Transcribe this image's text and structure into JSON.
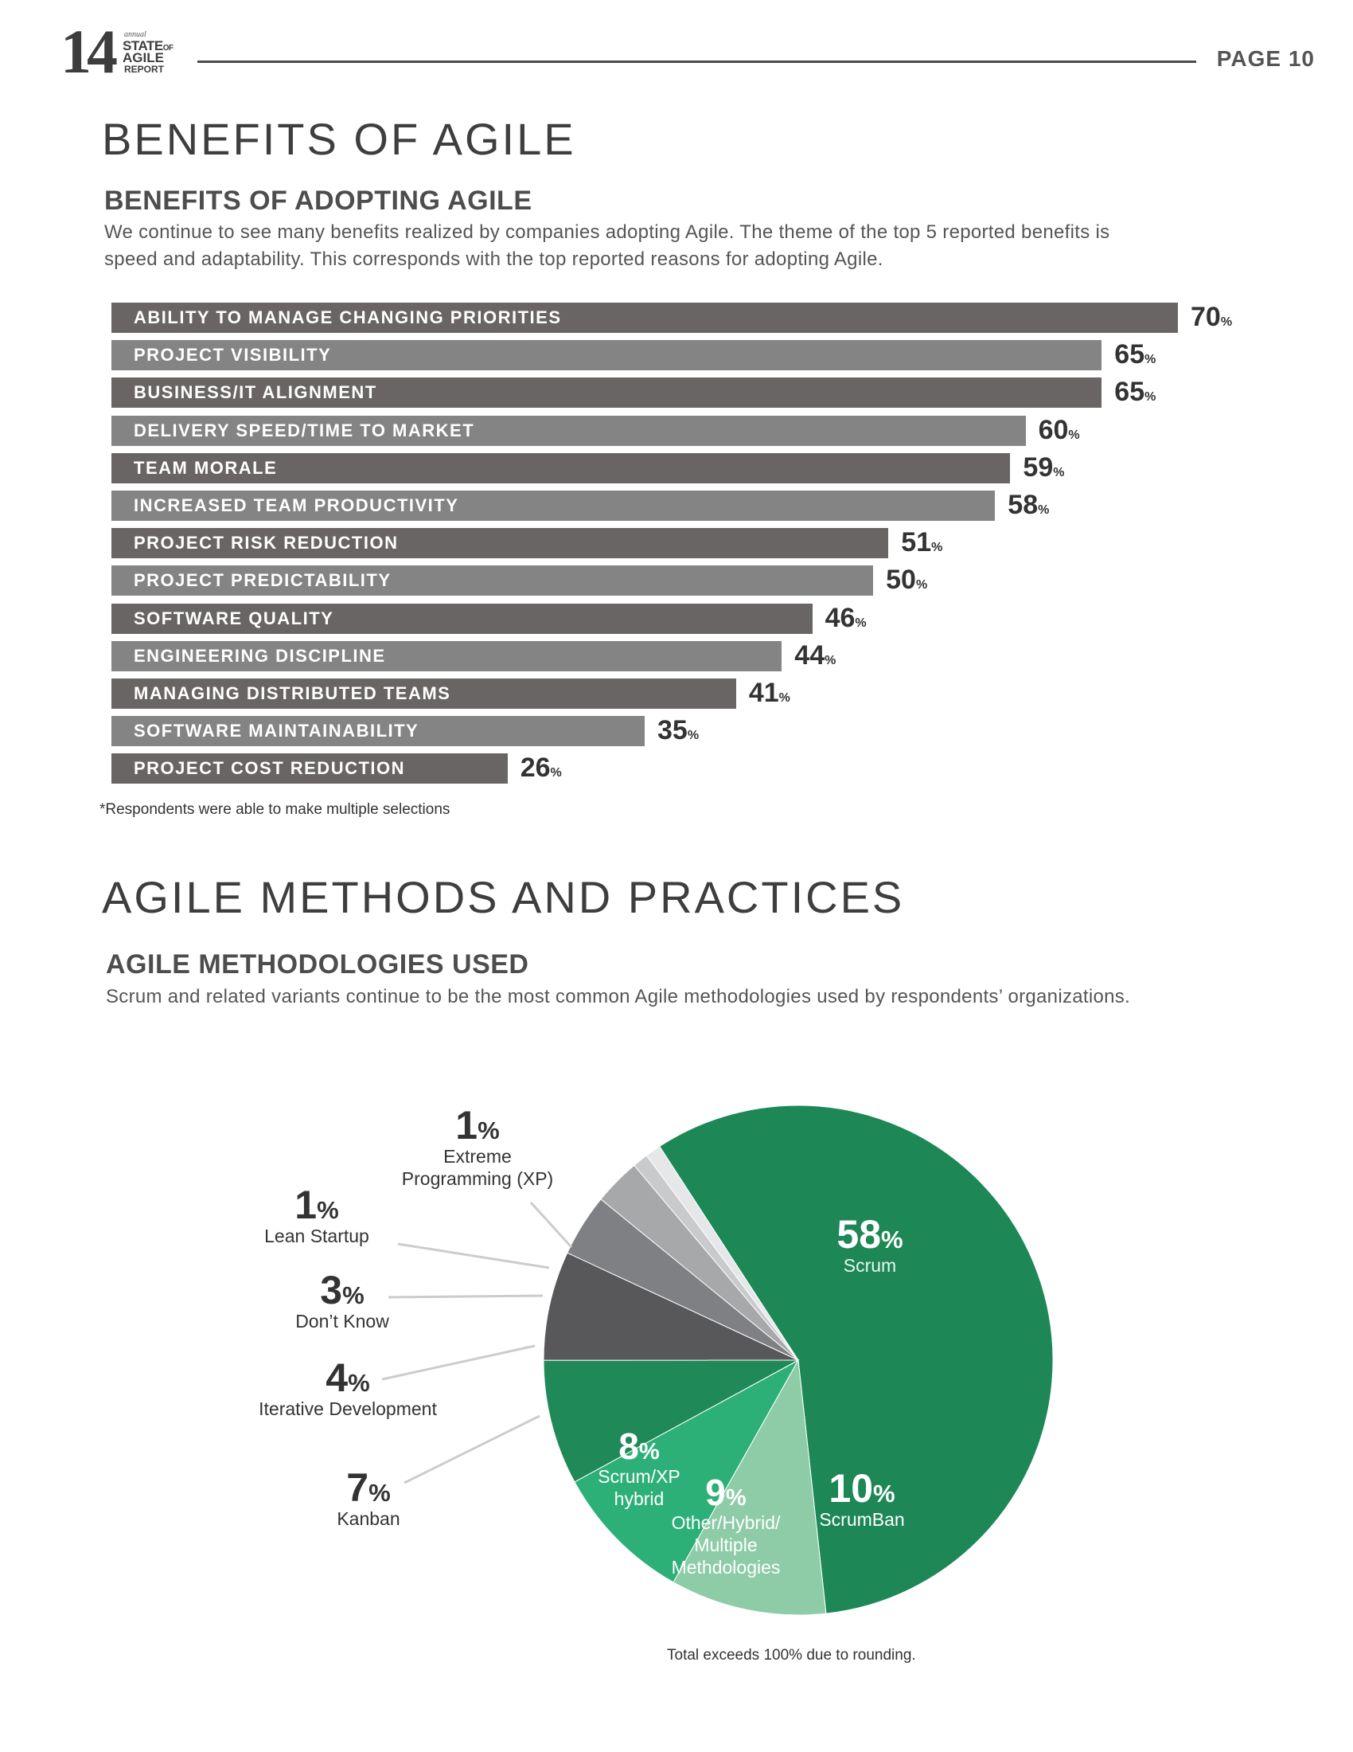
{
  "header": {
    "logo": {
      "number": "14",
      "annual": "annual",
      "line1": "STATE",
      "line1_suffix": "OF",
      "line2": "AGILE",
      "line3": "REPORT"
    },
    "page_label": "PAGE  10"
  },
  "benefits_section": {
    "title": "BENEFITS OF AGILE",
    "subtitle": "BENEFITS OF ADOPTING AGILE",
    "description_line1": "We continue to see many benefits realized by companies adopting Agile. The theme of the top 5 reported benefits is",
    "description_line2": "speed and adaptability. This corresponds with the top reported reasons for adopting Agile.",
    "footnote": "*Respondents were able to make multiple selections"
  },
  "methods_section": {
    "title": "AGILE METHODS AND PRACTICES",
    "subtitle": "AGILE METHODOLOGIES USED",
    "description": "Scrum and related variants continue to be the most common Agile methodologies used by respondents’ organizations.",
    "caption": "Total exceeds 100% due to rounding."
  },
  "colors": {
    "bar_dark": "#686564",
    "bar_light": "#848484",
    "text_dark": "#333333"
  },
  "chart_data": [
    {
      "type": "bar",
      "orientation": "horizontal",
      "title": "BENEFITS OF ADOPTING AGILE",
      "unit": "%",
      "xlim": [
        0,
        70
      ],
      "categories": [
        "ABILITY TO MANAGE CHANGING PRIORITIES",
        "PROJECT VISIBILITY",
        "BUSINESS/IT ALIGNMENT",
        "DELIVERY SPEED/TIME TO MARKET",
        "TEAM MORALE",
        "INCREASED TEAM PRODUCTIVITY",
        "PROJECT RISK REDUCTION",
        "PROJECT PREDICTABILITY",
        "SOFTWARE QUALITY",
        "ENGINEERING DISCIPLINE",
        "MANAGING DISTRIBUTED TEAMS",
        "SOFTWARE MAINTAINABILITY",
        "PROJECT COST REDUCTION"
      ],
      "values": [
        70,
        65,
        65,
        60,
        59,
        58,
        51,
        50,
        46,
        44,
        41,
        35,
        26
      ]
    },
    {
      "type": "pie",
      "title": "AGILE METHODOLOGIES USED",
      "slices": [
        {
          "label": "Scrum",
          "value": 58,
          "color": "#1d8756"
        },
        {
          "label": "ScrumBan",
          "value": 10,
          "color": "#8ecca8"
        },
        {
          "label": "Other/Hybrid/ Multiple Methdologies",
          "value": 9,
          "color": "#2db078"
        },
        {
          "label": "Scrum/XP hybrid",
          "value": 8,
          "color": "#1f8a58"
        },
        {
          "label": "Kanban",
          "value": 7,
          "color": "#58585a"
        },
        {
          "label": "Iterative Development",
          "value": 4,
          "color": "#7f8083"
        },
        {
          "label": "Don’t Know",
          "value": 3,
          "color": "#a7a8aa"
        },
        {
          "label": "Lean Startup",
          "value": 1,
          "color": "#c9cacb"
        },
        {
          "label": "Extreme Programming (XP)",
          "value": 1,
          "color": "#e6e7e8"
        }
      ]
    }
  ]
}
